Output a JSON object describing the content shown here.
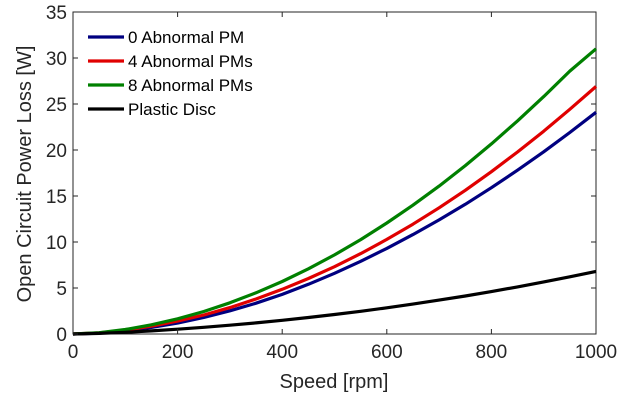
{
  "chart_data": {
    "type": "line",
    "xlabel": "Speed [rpm]",
    "ylabel": "Open Circuit Power Loss [W]",
    "xlim": [
      0,
      1000
    ],
    "ylim": [
      0,
      35
    ],
    "xticks": [
      "0",
      "200",
      "400",
      "600",
      "800",
      "1000"
    ],
    "yticks": [
      "0",
      "5",
      "10",
      "15",
      "20",
      "25",
      "30",
      "35"
    ],
    "grid": false,
    "legend_position": "top-left",
    "x": [
      0,
      50,
      100,
      150,
      200,
      250,
      300,
      350,
      400,
      450,
      500,
      550,
      600,
      650,
      700,
      750,
      800,
      850,
      900,
      950,
      1000
    ],
    "series": [
      {
        "name": "0 Abnormal PM",
        "color": "#000080",
        "values": [
          0,
          0.1,
          0.35,
          0.72,
          1.2,
          1.8,
          2.52,
          3.35,
          4.3,
          5.4,
          6.6,
          7.9,
          9.3,
          10.8,
          12.4,
          14.1,
          15.9,
          17.8,
          19.8,
          21.9,
          24.1
        ]
      },
      {
        "name": "4 Abnormal PMs",
        "color": "#e00000",
        "values": [
          0,
          0.12,
          0.42,
          0.85,
          1.4,
          2.07,
          2.87,
          3.8,
          4.86,
          6.03,
          7.32,
          8.74,
          10.28,
          11.94,
          13.72,
          15.62,
          17.64,
          19.78,
          22.04,
          24.42,
          26.9
        ]
      },
      {
        "name": "8 Abnormal PMs",
        "color": "#008000",
        "values": [
          0,
          0.14,
          0.49,
          1.0,
          1.65,
          2.45,
          3.39,
          4.48,
          5.71,
          7.09,
          8.6,
          10.26,
          12.06,
          14.0,
          16.08,
          18.3,
          20.66,
          23.16,
          25.8,
          28.58,
          31.0
        ]
      },
      {
        "name": "Plastic Disc",
        "color": "#000000",
        "values": [
          0,
          0.07,
          0.19,
          0.34,
          0.52,
          0.73,
          0.96,
          1.21,
          1.49,
          1.79,
          2.12,
          2.47,
          2.85,
          3.25,
          3.68,
          4.13,
          4.61,
          5.12,
          5.66,
          6.22,
          6.8
        ]
      }
    ]
  }
}
